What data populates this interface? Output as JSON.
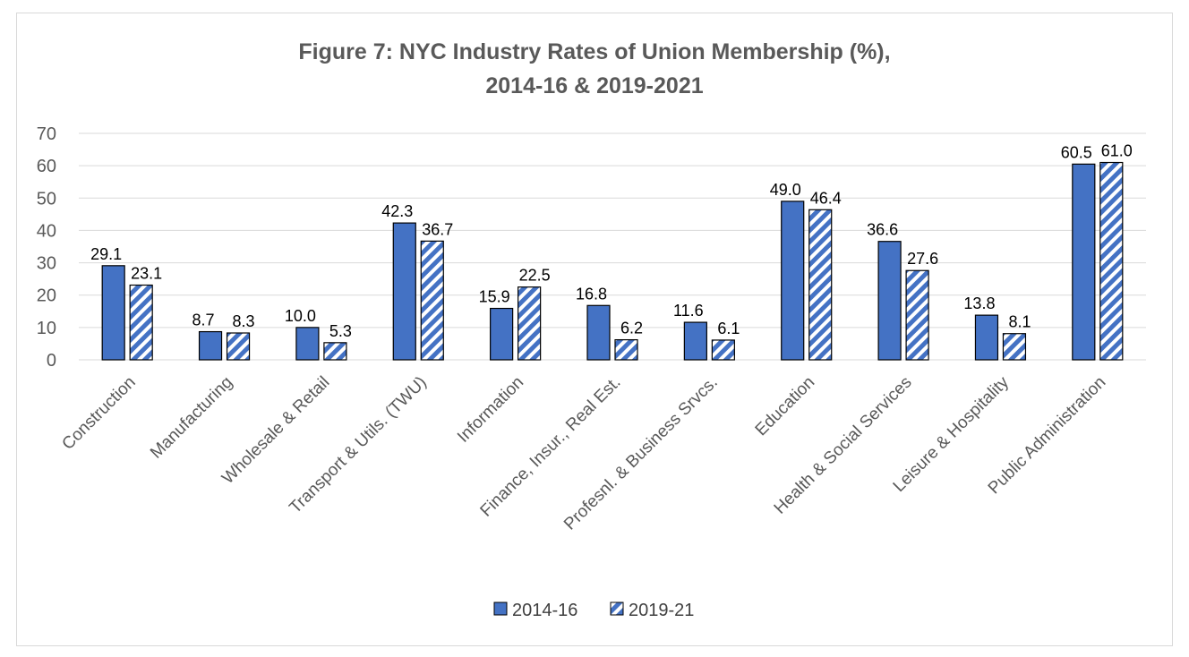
{
  "chart_data": {
    "type": "bar",
    "title_line1": "Figure 7: NYC Industry Rates of Union Membership (%),",
    "title_line2": "2014-16 & 2019-2021",
    "xlabel": "",
    "ylabel": "",
    "ylim": [
      0,
      70
    ],
    "yticks": [
      "0",
      "10",
      "20",
      "30",
      "40",
      "50",
      "60",
      "70"
    ],
    "grid": true,
    "legend_position": "bottom",
    "categories": [
      "Construction",
      "Manufacturing",
      "Wholesale & Retail",
      "Transport & Utils. (TWU)",
      "Information",
      "Finance, Insur., Real Est.",
      "Profesnl. & Business Srvcs.",
      "Education",
      "Health & Social Services",
      "Leisure & Hospitality",
      "Public Administration"
    ],
    "series": [
      {
        "name": "2014-16",
        "color": "#4472c4",
        "pattern": "solid",
        "values": [
          29.1,
          8.7,
          10.0,
          42.3,
          15.9,
          16.8,
          11.6,
          49.0,
          36.6,
          13.8,
          60.5
        ],
        "labels": [
          "29.1",
          "8.7",
          "10.0",
          "42.3",
          "15.9",
          "16.8",
          "11.6",
          "49.0",
          "36.6",
          "13.8",
          "60.5"
        ]
      },
      {
        "name": "2019-21",
        "color": "#4472c4",
        "pattern": "diagonal-stripes",
        "values": [
          23.1,
          8.3,
          5.3,
          36.7,
          22.5,
          6.2,
          6.1,
          46.4,
          27.6,
          8.1,
          61.0
        ],
        "labels": [
          "23.1",
          "8.3",
          "5.3",
          "36.7",
          "22.5",
          "6.2",
          "6.1",
          "46.4",
          "27.6",
          "8.1",
          "61.0"
        ]
      }
    ]
  }
}
